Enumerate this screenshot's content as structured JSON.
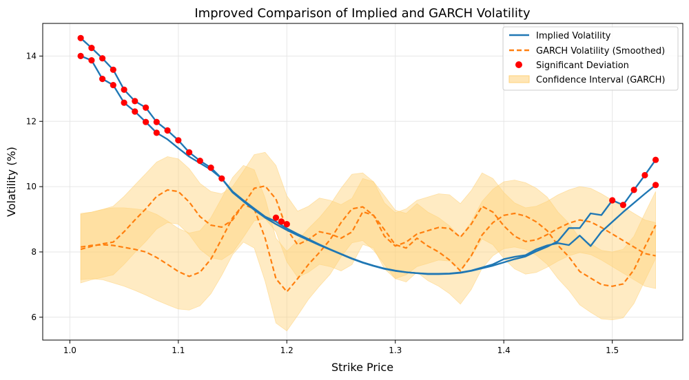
{
  "chart_data": {
    "type": "line",
    "title": "Improved Comparison of Implied and GARCH Volatility",
    "xlabel": "Strike Price",
    "ylabel": "Volatility (%)",
    "xlim": [
      0.975,
      1.565
    ],
    "ylim": [
      5.3,
      15.0
    ],
    "xticks": [
      1.0,
      1.1,
      1.2,
      1.3,
      1.4,
      1.5
    ],
    "xtick_labels": [
      "1.0",
      "1.1",
      "1.2",
      "1.3",
      "1.4",
      "1.5"
    ],
    "yticks": [
      6,
      8,
      10,
      12,
      14
    ],
    "ytick_labels": [
      "6",
      "8",
      "10",
      "12",
      "14"
    ],
    "grid": true,
    "legend_position": "top-right",
    "colors": {
      "implied": "#1f77b4",
      "garch": "#ff7f0e",
      "deviation": "#ff0000",
      "ci": "#ffd27a"
    },
    "series": [
      {
        "name": "Implied Volatility",
        "style": "solid",
        "segments": [
          {
            "x": [
              1.01,
              1.02,
              1.03,
              1.04,
              1.05,
              1.06,
              1.07,
              1.08,
              1.09,
              1.1,
              1.11,
              1.12,
              1.13,
              1.14,
              1.15,
              1.16,
              1.17,
              1.18,
              1.19,
              1.2,
              1.21,
              1.22,
              1.23,
              1.24,
              1.25,
              1.26,
              1.27,
              1.28,
              1.29,
              1.3,
              1.31,
              1.32,
              1.33,
              1.34,
              1.35,
              1.36,
              1.37,
              1.38,
              1.39,
              1.4,
              1.41,
              1.42,
              1.43,
              1.44,
              1.45,
              1.46,
              1.47,
              1.48,
              1.49,
              1.5,
              1.51,
              1.52,
              1.53,
              1.54
            ],
            "y": [
              14.55,
              14.25,
              13.93,
              13.58,
              12.97,
              12.62,
              12.42,
              11.98,
              11.72,
              11.42,
              11.05,
              10.79,
              10.58,
              10.25,
              9.82,
              9.55,
              9.29,
              9.05,
              8.85,
              8.67,
              8.51,
              8.36,
              8.21,
              8.07,
              7.93,
              7.79,
              7.67,
              7.57,
              7.48,
              7.42,
              7.38,
              7.35,
              7.33,
              7.33,
              7.34,
              7.37,
              7.43,
              7.52,
              7.62,
              7.78,
              7.85,
              7.9,
              8.08,
              8.2,
              8.27,
              8.21,
              8.5,
              8.18,
              8.62,
              8.92,
              9.22,
              9.5,
              9.78,
              10.05
            ]
          },
          {
            "x": [
              1.01,
              1.02,
              1.03,
              1.04,
              1.05,
              1.06,
              1.07,
              1.08,
              1.09,
              1.1,
              1.11,
              1.12,
              1.13,
              1.14,
              1.15,
              1.16,
              1.17,
              1.18,
              1.19,
              1.2,
              1.21,
              1.22,
              1.23,
              1.24,
              1.25,
              1.26,
              1.27,
              1.28,
              1.29,
              1.3,
              1.31,
              1.32,
              1.33,
              1.34,
              1.35,
              1.36,
              1.37,
              1.38,
              1.39,
              1.4,
              1.41,
              1.42,
              1.43,
              1.44,
              1.45,
              1.46,
              1.47,
              1.48,
              1.49,
              1.5,
              1.51,
              1.52,
              1.53,
              1.54
            ],
            "y": [
              14.0,
              13.87,
              13.3,
              13.11,
              12.57,
              12.3,
              11.98,
              11.65,
              11.45,
              11.18,
              10.92,
              10.72,
              10.52,
              10.25,
              9.85,
              9.58,
              9.33,
              9.08,
              8.93,
              8.72,
              8.55,
              8.39,
              8.23,
              8.08,
              7.94,
              7.8,
              7.68,
              7.58,
              7.49,
              7.43,
              7.38,
              7.35,
              7.32,
              7.32,
              7.33,
              7.36,
              7.42,
              7.5,
              7.58,
              7.68,
              7.78,
              7.86,
              8.02,
              8.16,
              8.33,
              8.73,
              8.73,
              9.18,
              9.13,
              9.58,
              9.44,
              9.9,
              10.35,
              10.82
            ]
          }
        ]
      },
      {
        "name": "GARCH Volatility (Smoothed)",
        "style": "dashed",
        "segments": [
          {
            "x": [
              1.01,
              1.02,
              1.03,
              1.04,
              1.05,
              1.06,
              1.07,
              1.08,
              1.09,
              1.1,
              1.11,
              1.12,
              1.13,
              1.14,
              1.15,
              1.16,
              1.17,
              1.18,
              1.19,
              1.2,
              1.21,
              1.22,
              1.23,
              1.24,
              1.25,
              1.26,
              1.27,
              1.28,
              1.29,
              1.3,
              1.31,
              1.32,
              1.33,
              1.34,
              1.35,
              1.36,
              1.37,
              1.38,
              1.39,
              1.4,
              1.41,
              1.42,
              1.43,
              1.44,
              1.45,
              1.46,
              1.47,
              1.48,
              1.49,
              1.5,
              1.51,
              1.52,
              1.53,
              1.54
            ],
            "y": [
              8.08,
              8.17,
              8.25,
              8.3,
              8.62,
              8.98,
              9.32,
              9.7,
              9.9,
              9.85,
              9.53,
              9.08,
              8.82,
              8.76,
              8.98,
              9.45,
              9.95,
              10.02,
              9.62,
              8.7,
              8.22,
              8.38,
              8.62,
              8.55,
              8.42,
              8.61,
              9.23,
              9.12,
              8.48,
              8.18,
              8.3,
              8.55,
              8.65,
              8.75,
              8.72,
              8.45,
              8.85,
              9.4,
              9.22,
              8.8,
              8.48,
              8.32,
              8.37,
              8.53,
              8.72,
              8.88,
              8.98,
              8.92,
              8.75,
              8.55,
              8.35,
              8.15,
              7.95,
              7.88
            ]
          },
          {
            "x": [
              1.01,
              1.02,
              1.03,
              1.04,
              1.05,
              1.06,
              1.07,
              1.08,
              1.09,
              1.1,
              1.11,
              1.12,
              1.13,
              1.14,
              1.15,
              1.16,
              1.17,
              1.18,
              1.19,
              1.2,
              1.21,
              1.22,
              1.23,
              1.24,
              1.25,
              1.26,
              1.27,
              1.28,
              1.29,
              1.3,
              1.31,
              1.32,
              1.33,
              1.34,
              1.35,
              1.36,
              1.37,
              1.38,
              1.39,
              1.4,
              1.41,
              1.42,
              1.43,
              1.44,
              1.45,
              1.46,
              1.47,
              1.48,
              1.49,
              1.5,
              1.51,
              1.52,
              1.53,
              1.54
            ],
            "y": [
              8.15,
              8.2,
              8.22,
              8.2,
              8.14,
              8.08,
              8.0,
              7.83,
              7.62,
              7.4,
              7.25,
              7.38,
              7.78,
              8.4,
              9.05,
              9.45,
              9.32,
              8.42,
              7.18,
              6.78,
              7.18,
              7.62,
              7.98,
              8.38,
              8.9,
              9.32,
              9.38,
              9.12,
              8.68,
              8.22,
              8.12,
              8.42,
              8.18,
              8.0,
              7.75,
              7.42,
              7.88,
              8.52,
              8.9,
              9.12,
              9.18,
              9.1,
              8.92,
              8.65,
              8.2,
              7.85,
              7.4,
              7.2,
              7.0,
              6.95,
              7.02,
              7.45,
              8.15,
              8.82
            ]
          }
        ]
      },
      {
        "name": "Significant Deviation",
        "style": "markers",
        "points": {
          "x": [
            1.01,
            1.01,
            1.02,
            1.02,
            1.03,
            1.03,
            1.04,
            1.04,
            1.05,
            1.05,
            1.06,
            1.06,
            1.07,
            1.07,
            1.08,
            1.08,
            1.09,
            1.1,
            1.11,
            1.12,
            1.13,
            1.14,
            1.19,
            1.195,
            1.2,
            1.5,
            1.51,
            1.52,
            1.53,
            1.54,
            1.54
          ],
          "y": [
            14.55,
            14.0,
            14.25,
            13.87,
            13.93,
            13.3,
            13.58,
            13.11,
            12.97,
            12.57,
            12.62,
            12.3,
            12.42,
            11.98,
            11.98,
            11.65,
            11.72,
            11.42,
            11.05,
            10.79,
            10.58,
            10.25,
            9.05,
            8.93,
            8.85,
            9.58,
            9.44,
            9.9,
            10.35,
            10.82,
            10.05
          ]
        }
      },
      {
        "name": "Confidence Interval (GARCH)",
        "style": "band",
        "bands": [
          {
            "x": [
              1.01,
              1.02,
              1.03,
              1.04,
              1.05,
              1.06,
              1.07,
              1.08,
              1.09,
              1.1,
              1.11,
              1.12,
              1.13,
              1.14,
              1.15,
              1.16,
              1.17,
              1.18,
              1.19,
              1.2,
              1.21,
              1.22,
              1.23,
              1.24,
              1.25,
              1.26,
              1.27,
              1.28,
              1.29,
              1.3,
              1.31,
              1.32,
              1.33,
              1.34,
              1.35,
              1.36,
              1.37,
              1.38,
              1.39,
              1.4,
              1.41,
              1.42,
              1.43,
              1.44,
              1.45,
              1.46,
              1.47,
              1.48,
              1.49,
              1.5,
              1.51,
              1.52,
              1.53,
              1.54
            ],
            "lower": [
              7.05,
              7.15,
              7.22,
              7.3,
              7.62,
              7.98,
              8.32,
              8.7,
              8.9,
              8.85,
              8.53,
              8.08,
              7.82,
              7.76,
              7.98,
              8.45,
              8.95,
              9.02,
              8.62,
              7.7,
              7.22,
              7.38,
              7.62,
              7.55,
              7.42,
              7.61,
              8.23,
              8.12,
              7.48,
              7.18,
              7.3,
              7.55,
              7.65,
              7.75,
              7.72,
              7.45,
              7.85,
              8.4,
              8.22,
              7.8,
              7.48,
              7.32,
              7.37,
              7.53,
              7.72,
              7.88,
              7.98,
              7.92,
              7.75,
              7.55,
              7.35,
              7.15,
              6.95,
              6.88
            ],
            "upper": [
              9.18,
              9.22,
              9.3,
              9.4,
              9.7,
              10.05,
              10.4,
              10.75,
              10.92,
              10.85,
              10.55,
              10.1,
              9.85,
              9.78,
              10.0,
              10.48,
              10.98,
              11.05,
              10.65,
              9.72,
              9.25,
              9.4,
              9.65,
              9.58,
              9.45,
              9.64,
              10.25,
              10.15,
              9.5,
              9.2,
              9.32,
              9.58,
              9.68,
              9.78,
              9.75,
              9.48,
              9.88,
              10.42,
              10.25,
              9.82,
              9.5,
              9.35,
              9.4,
              9.55,
              9.75,
              9.9,
              10.0,
              9.95,
              9.78,
              9.58,
              9.38,
              9.18,
              8.98,
              8.9
            ]
          },
          {
            "x": [
              1.01,
              1.02,
              1.03,
              1.04,
              1.05,
              1.06,
              1.07,
              1.08,
              1.09,
              1.1,
              1.11,
              1.12,
              1.13,
              1.14,
              1.15,
              1.16,
              1.17,
              1.18,
              1.19,
              1.2,
              1.21,
              1.22,
              1.23,
              1.24,
              1.25,
              1.26,
              1.27,
              1.28,
              1.29,
              1.3,
              1.31,
              1.32,
              1.33,
              1.34,
              1.35,
              1.36,
              1.37,
              1.38,
              1.39,
              1.4,
              1.41,
              1.42,
              1.43,
              1.44,
              1.45,
              1.46,
              1.47,
              1.48,
              1.49,
              1.5,
              1.51,
              1.52,
              1.53,
              1.54
            ],
            "lower": [
              7.15,
              7.18,
              7.15,
              7.05,
              6.95,
              6.82,
              6.68,
              6.52,
              6.38,
              6.25,
              6.22,
              6.35,
              6.72,
              7.28,
              7.92,
              8.3,
              8.12,
              7.1,
              5.82,
              5.58,
              6.05,
              6.55,
              6.95,
              7.32,
              7.85,
              8.28,
              8.35,
              8.05,
              7.62,
              7.18,
              7.08,
              7.38,
              7.12,
              6.95,
              6.72,
              6.4,
              6.85,
              7.5,
              7.88,
              8.1,
              8.15,
              8.08,
              7.9,
              7.62,
              7.18,
              6.82,
              6.38,
              6.15,
              5.95,
              5.92,
              5.98,
              6.42,
              7.12,
              7.8
            ],
            "upper": [
              9.15,
              9.22,
              9.3,
              9.35,
              9.35,
              9.32,
              9.28,
              9.15,
              8.95,
              8.72,
              8.58,
              8.65,
              9.05,
              9.65,
              10.28,
              10.65,
              10.52,
              9.65,
              8.42,
              8.02,
              8.35,
              8.72,
              9.05,
              9.45,
              9.95,
              10.38,
              10.42,
              10.15,
              9.72,
              9.28,
              9.18,
              9.48,
              9.22,
              9.05,
              8.8,
              8.45,
              8.92,
              9.55,
              9.92,
              10.15,
              10.2,
              10.12,
              9.95,
              9.68,
              9.22,
              8.88,
              8.42,
              8.25,
              8.05,
              8.0,
              8.08,
              8.48,
              9.18,
              9.85
            ]
          }
        ]
      }
    ]
  }
}
